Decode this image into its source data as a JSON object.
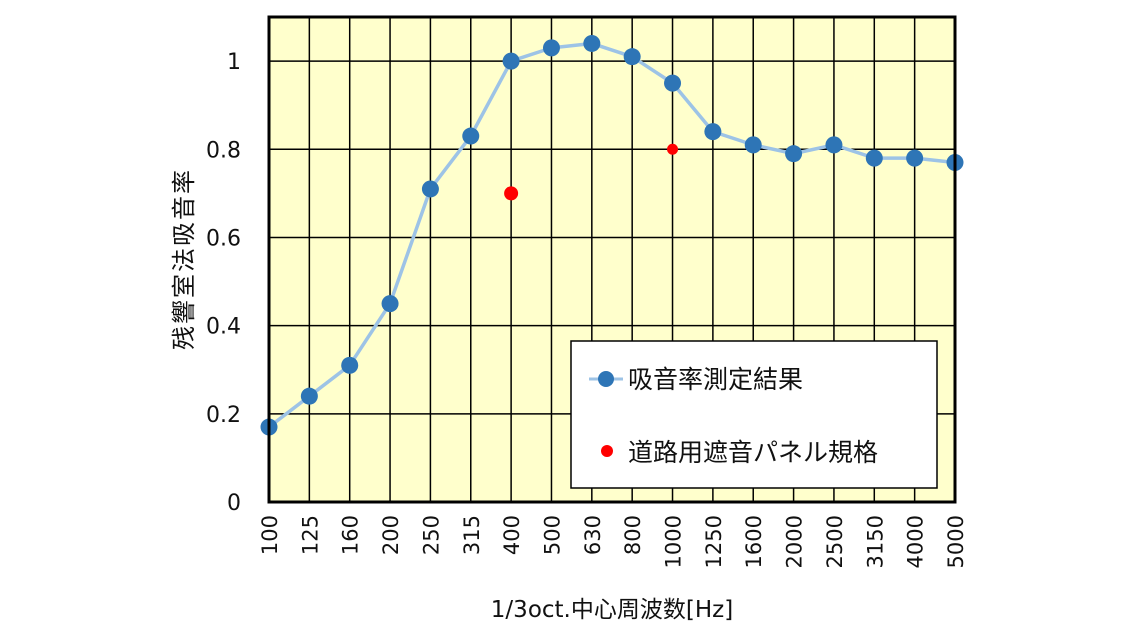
{
  "chart_data": {
    "type": "line",
    "title": "",
    "xlabel": "1/3oct.中心周波数[Hz]",
    "ylabel": "残響室法吸音率",
    "categories": [
      "100",
      "125",
      "160",
      "200",
      "250",
      "315",
      "400",
      "500",
      "630",
      "800",
      "1000",
      "1250",
      "1600",
      "2000",
      "2500",
      "3150",
      "4000",
      "5000"
    ],
    "ylim": [
      0,
      1.1
    ],
    "yticks": [
      "0",
      "0.2",
      "0.4",
      "0.6",
      "0.8",
      "1"
    ],
    "grid": true,
    "plot_background": "#ffffcc",
    "legend_position": "inside-lower-right",
    "series": [
      {
        "name": "吸音率測定結果",
        "type": "line+marker",
        "line_color": "#9dc3e6",
        "marker_color": "#2e75b6",
        "values": [
          0.17,
          0.24,
          0.31,
          0.45,
          0.71,
          0.83,
          1.0,
          1.03,
          1.04,
          1.01,
          0.95,
          0.84,
          0.81,
          0.79,
          0.81,
          0.78,
          0.78,
          0.77
        ]
      },
      {
        "name": "道路用遮音パネル規格",
        "type": "scatter",
        "marker_color": "#ff0000",
        "points": [
          {
            "x": "400",
            "y": 0.7
          },
          {
            "x": "1000",
            "y": 0.8
          }
        ]
      }
    ]
  },
  "legend": {
    "items": [
      {
        "label": "吸音率測定結果"
      },
      {
        "label": "道路用遮音パネル規格"
      }
    ]
  }
}
